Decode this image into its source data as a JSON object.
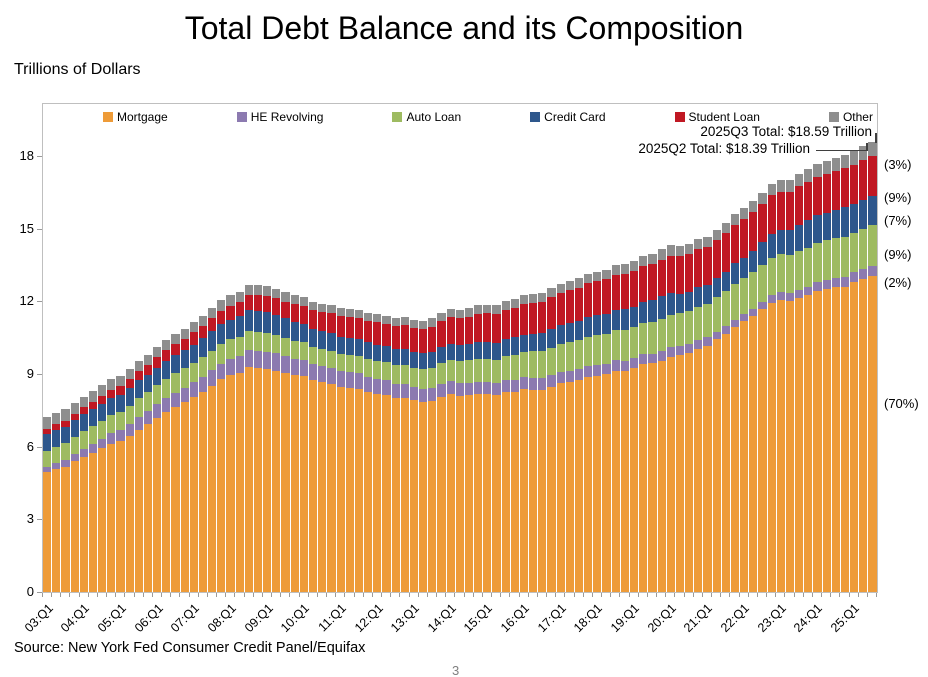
{
  "header": {
    "title": "Total Debt Balance and its Composition",
    "units_label": "Trillions of Dollars"
  },
  "footer": {
    "source": "Source: New York Fed Consumer Credit Panel/Equifax",
    "page_number": "3"
  },
  "annotations": {
    "q3_total": "2025Q3 Total: $18.59 Trillion",
    "q2_total": "2025Q2 Total: $18.39 Trillion"
  },
  "chart_data": {
    "type": "bar",
    "stacked": true,
    "title": "Total Debt Balance and its Composition",
    "ylabel": "Trillions of Dollars",
    "xlabel": "",
    "ylim": [
      0,
      20.15
    ],
    "yticks": [
      0,
      3,
      6,
      9,
      12,
      15,
      18
    ],
    "grid": false,
    "legend_position": "top",
    "x_label_every": 4,
    "categories": [
      "03:Q1",
      "03:Q2",
      "03:Q3",
      "03:Q4",
      "04:Q1",
      "04:Q2",
      "04:Q3",
      "04:Q4",
      "05:Q1",
      "05:Q2",
      "05:Q3",
      "05:Q4",
      "06:Q1",
      "06:Q2",
      "06:Q3",
      "06:Q4",
      "07:Q1",
      "07:Q2",
      "07:Q3",
      "07:Q4",
      "08:Q1",
      "08:Q2",
      "08:Q3",
      "08:Q4",
      "09:Q1",
      "09:Q2",
      "09:Q3",
      "09:Q4",
      "10:Q1",
      "10:Q2",
      "10:Q3",
      "10:Q4",
      "11:Q1",
      "11:Q2",
      "11:Q3",
      "11:Q4",
      "12:Q1",
      "12:Q2",
      "12:Q3",
      "12:Q4",
      "13:Q1",
      "13:Q2",
      "13:Q3",
      "13:Q4",
      "14:Q1",
      "14:Q2",
      "14:Q3",
      "14:Q4",
      "15:Q1",
      "15:Q2",
      "15:Q3",
      "15:Q4",
      "16:Q1",
      "16:Q2",
      "16:Q3",
      "16:Q4",
      "17:Q1",
      "17:Q2",
      "17:Q3",
      "17:Q4",
      "18:Q1",
      "18:Q2",
      "18:Q3",
      "18:Q4",
      "19:Q1",
      "19:Q2",
      "19:Q3",
      "19:Q4",
      "20:Q1",
      "20:Q2",
      "20:Q3",
      "20:Q4",
      "21:Q1",
      "21:Q2",
      "21:Q3",
      "21:Q4",
      "22:Q1",
      "22:Q2",
      "22:Q3",
      "22:Q4",
      "23:Q1",
      "23:Q2",
      "23:Q3",
      "23:Q4",
      "24:Q1",
      "24:Q2",
      "24:Q3",
      "24:Q4",
      "25:Q1",
      "25:Q2",
      "25:Q3"
    ],
    "series": [
      {
        "name": "Mortgage",
        "color": "#EE9B38",
        "values": [
          4.94,
          5.08,
          5.18,
          5.41,
          5.59,
          5.75,
          5.93,
          6.12,
          6.23,
          6.45,
          6.71,
          6.92,
          7.19,
          7.43,
          7.65,
          7.83,
          8.05,
          8.28,
          8.52,
          8.78,
          8.95,
          9.06,
          9.29,
          9.26,
          9.22,
          9.14,
          9.04,
          8.95,
          8.91,
          8.74,
          8.66,
          8.59,
          8.45,
          8.44,
          8.4,
          8.27,
          8.19,
          8.15,
          8.03,
          8.03,
          7.93,
          7.84,
          7.89,
          8.05,
          8.17,
          8.1,
          8.13,
          8.17,
          8.17,
          8.12,
          8.26,
          8.25,
          8.37,
          8.36,
          8.35,
          8.48,
          8.63,
          8.69,
          8.74,
          8.88,
          8.94,
          9.0,
          9.14,
          9.12,
          9.24,
          9.41,
          9.44,
          9.56,
          9.71,
          9.78,
          9.86,
          10.04,
          10.16,
          10.44,
          10.67,
          10.93,
          11.18,
          11.39,
          11.67,
          11.92,
          12.04,
          12.01,
          12.14,
          12.25,
          12.44,
          12.52,
          12.59,
          12.61,
          12.8,
          12.94,
          13.07
        ]
      },
      {
        "name": "HE Revolving",
        "color": "#8C7AB0",
        "values": [
          0.24,
          0.26,
          0.27,
          0.3,
          0.33,
          0.36,
          0.39,
          0.44,
          0.46,
          0.49,
          0.52,
          0.54,
          0.56,
          0.57,
          0.58,
          0.6,
          0.61,
          0.62,
          0.63,
          0.65,
          0.67,
          0.68,
          0.69,
          0.7,
          0.71,
          0.71,
          0.7,
          0.69,
          0.68,
          0.67,
          0.66,
          0.67,
          0.66,
          0.64,
          0.63,
          0.62,
          0.61,
          0.59,
          0.57,
          0.56,
          0.55,
          0.54,
          0.54,
          0.53,
          0.53,
          0.52,
          0.51,
          0.51,
          0.51,
          0.5,
          0.49,
          0.49,
          0.49,
          0.48,
          0.47,
          0.47,
          0.46,
          0.45,
          0.45,
          0.44,
          0.44,
          0.43,
          0.42,
          0.41,
          0.41,
          0.4,
          0.4,
          0.39,
          0.39,
          0.38,
          0.37,
          0.35,
          0.35,
          0.32,
          0.32,
          0.32,
          0.32,
          0.32,
          0.32,
          0.34,
          0.34,
          0.34,
          0.35,
          0.36,
          0.37,
          0.38,
          0.39,
          0.4,
          0.4,
          0.41,
          0.41
        ]
      },
      {
        "name": "Auto Loan",
        "color": "#9EBB61",
        "values": [
          0.64,
          0.66,
          0.69,
          0.7,
          0.72,
          0.74,
          0.75,
          0.73,
          0.74,
          0.76,
          0.79,
          0.79,
          0.79,
          0.8,
          0.8,
          0.81,
          0.8,
          0.81,
          0.82,
          0.81,
          0.82,
          0.81,
          0.81,
          0.79,
          0.78,
          0.77,
          0.75,
          0.74,
          0.72,
          0.71,
          0.71,
          0.71,
          0.7,
          0.71,
          0.72,
          0.73,
          0.74,
          0.75,
          0.77,
          0.78,
          0.79,
          0.81,
          0.83,
          0.86,
          0.88,
          0.9,
          0.92,
          0.94,
          0.95,
          0.98,
          1.0,
          1.04,
          1.06,
          1.1,
          1.12,
          1.14,
          1.16,
          1.19,
          1.21,
          1.22,
          1.23,
          1.24,
          1.26,
          1.27,
          1.28,
          1.3,
          1.32,
          1.33,
          1.35,
          1.34,
          1.36,
          1.37,
          1.38,
          1.42,
          1.44,
          1.46,
          1.47,
          1.5,
          1.52,
          1.55,
          1.56,
          1.58,
          1.6,
          1.61,
          1.62,
          1.63,
          1.64,
          1.66,
          1.64,
          1.64,
          1.66
        ]
      },
      {
        "name": "Credit Card",
        "color": "#2E578C",
        "values": [
          0.69,
          0.69,
          0.69,
          0.7,
          0.7,
          0.7,
          0.71,
          0.72,
          0.71,
          0.72,
          0.73,
          0.73,
          0.73,
          0.74,
          0.74,
          0.75,
          0.75,
          0.77,
          0.79,
          0.82,
          0.81,
          0.83,
          0.85,
          0.87,
          0.85,
          0.83,
          0.81,
          0.79,
          0.76,
          0.74,
          0.73,
          0.73,
          0.7,
          0.69,
          0.69,
          0.7,
          0.68,
          0.67,
          0.67,
          0.68,
          0.66,
          0.67,
          0.67,
          0.68,
          0.66,
          0.67,
          0.68,
          0.7,
          0.68,
          0.7,
          0.71,
          0.73,
          0.71,
          0.73,
          0.75,
          0.78,
          0.76,
          0.78,
          0.81,
          0.83,
          0.82,
          0.83,
          0.84,
          0.87,
          0.85,
          0.87,
          0.88,
          0.93,
          0.89,
          0.82,
          0.81,
          0.82,
          0.77,
          0.79,
          0.8,
          0.86,
          0.84,
          0.89,
          0.93,
          0.99,
          0.99,
          1.03,
          1.08,
          1.13,
          1.12,
          1.14,
          1.17,
          1.21,
          1.18,
          1.21,
          1.23
        ]
      },
      {
        "name": "Student Loan",
        "color": "#C01823",
        "values": [
          0.24,
          0.25,
          0.25,
          0.25,
          0.29,
          0.31,
          0.33,
          0.35,
          0.36,
          0.38,
          0.39,
          0.41,
          0.44,
          0.45,
          0.47,
          0.48,
          0.51,
          0.52,
          0.54,
          0.56,
          0.58,
          0.59,
          0.61,
          0.64,
          0.67,
          0.68,
          0.69,
          0.72,
          0.76,
          0.77,
          0.79,
          0.81,
          0.87,
          0.88,
          0.87,
          0.87,
          0.92,
          0.91,
          0.94,
          0.97,
          0.99,
          1.0,
          1.03,
          1.08,
          1.11,
          1.12,
          1.13,
          1.16,
          1.19,
          1.19,
          1.2,
          1.23,
          1.26,
          1.26,
          1.28,
          1.31,
          1.34,
          1.34,
          1.36,
          1.38,
          1.41,
          1.41,
          1.44,
          1.46,
          1.49,
          1.48,
          1.5,
          1.51,
          1.54,
          1.54,
          1.55,
          1.56,
          1.58,
          1.57,
          1.58,
          1.58,
          1.59,
          1.59,
          1.57,
          1.6,
          1.6,
          1.57,
          1.6,
          1.6,
          1.6,
          1.59,
          1.61,
          1.62,
          1.63,
          1.64,
          1.65
        ]
      },
      {
        "name": "Other",
        "color": "#8E8E8E",
        "values": [
          0.47,
          0.46,
          0.46,
          0.45,
          0.44,
          0.44,
          0.43,
          0.43,
          0.42,
          0.42,
          0.42,
          0.41,
          0.41,
          0.41,
          0.41,
          0.41,
          0.41,
          0.41,
          0.42,
          0.42,
          0.42,
          0.42,
          0.42,
          0.41,
          0.4,
          0.39,
          0.38,
          0.37,
          0.36,
          0.36,
          0.35,
          0.35,
          0.34,
          0.34,
          0.33,
          0.33,
          0.33,
          0.33,
          0.33,
          0.33,
          0.33,
          0.33,
          0.34,
          0.34,
          0.35,
          0.35,
          0.35,
          0.36,
          0.36,
          0.36,
          0.37,
          0.37,
          0.37,
          0.38,
          0.38,
          0.38,
          0.38,
          0.39,
          0.39,
          0.39,
          0.39,
          0.4,
          0.4,
          0.41,
          0.41,
          0.41,
          0.42,
          0.43,
          0.43,
          0.42,
          0.42,
          0.42,
          0.42,
          0.43,
          0.43,
          0.44,
          0.44,
          0.45,
          0.46,
          0.47,
          0.48,
          0.49,
          0.5,
          0.51,
          0.52,
          0.53,
          0.54,
          0.54,
          0.55,
          0.56,
          0.57
        ]
      }
    ],
    "annotations": [
      {
        "text": "2025Q3 Total: $18.59 Trillion",
        "target": "25:Q3"
      },
      {
        "text": "2025Q2 Total: $18.39 Trillion",
        "target": "25:Q2"
      }
    ],
    "right_percent_labels": [
      {
        "series": "Other",
        "text": "(3%)"
      },
      {
        "series": "Student Loan",
        "text": "(9%)"
      },
      {
        "series": "Credit Card",
        "text": "(7%)"
      },
      {
        "series": "Auto Loan",
        "text": "(9%)"
      },
      {
        "series": "HE Revolving",
        "text": "(2%)"
      },
      {
        "series": "Mortgage",
        "text": "(70%)"
      }
    ]
  }
}
